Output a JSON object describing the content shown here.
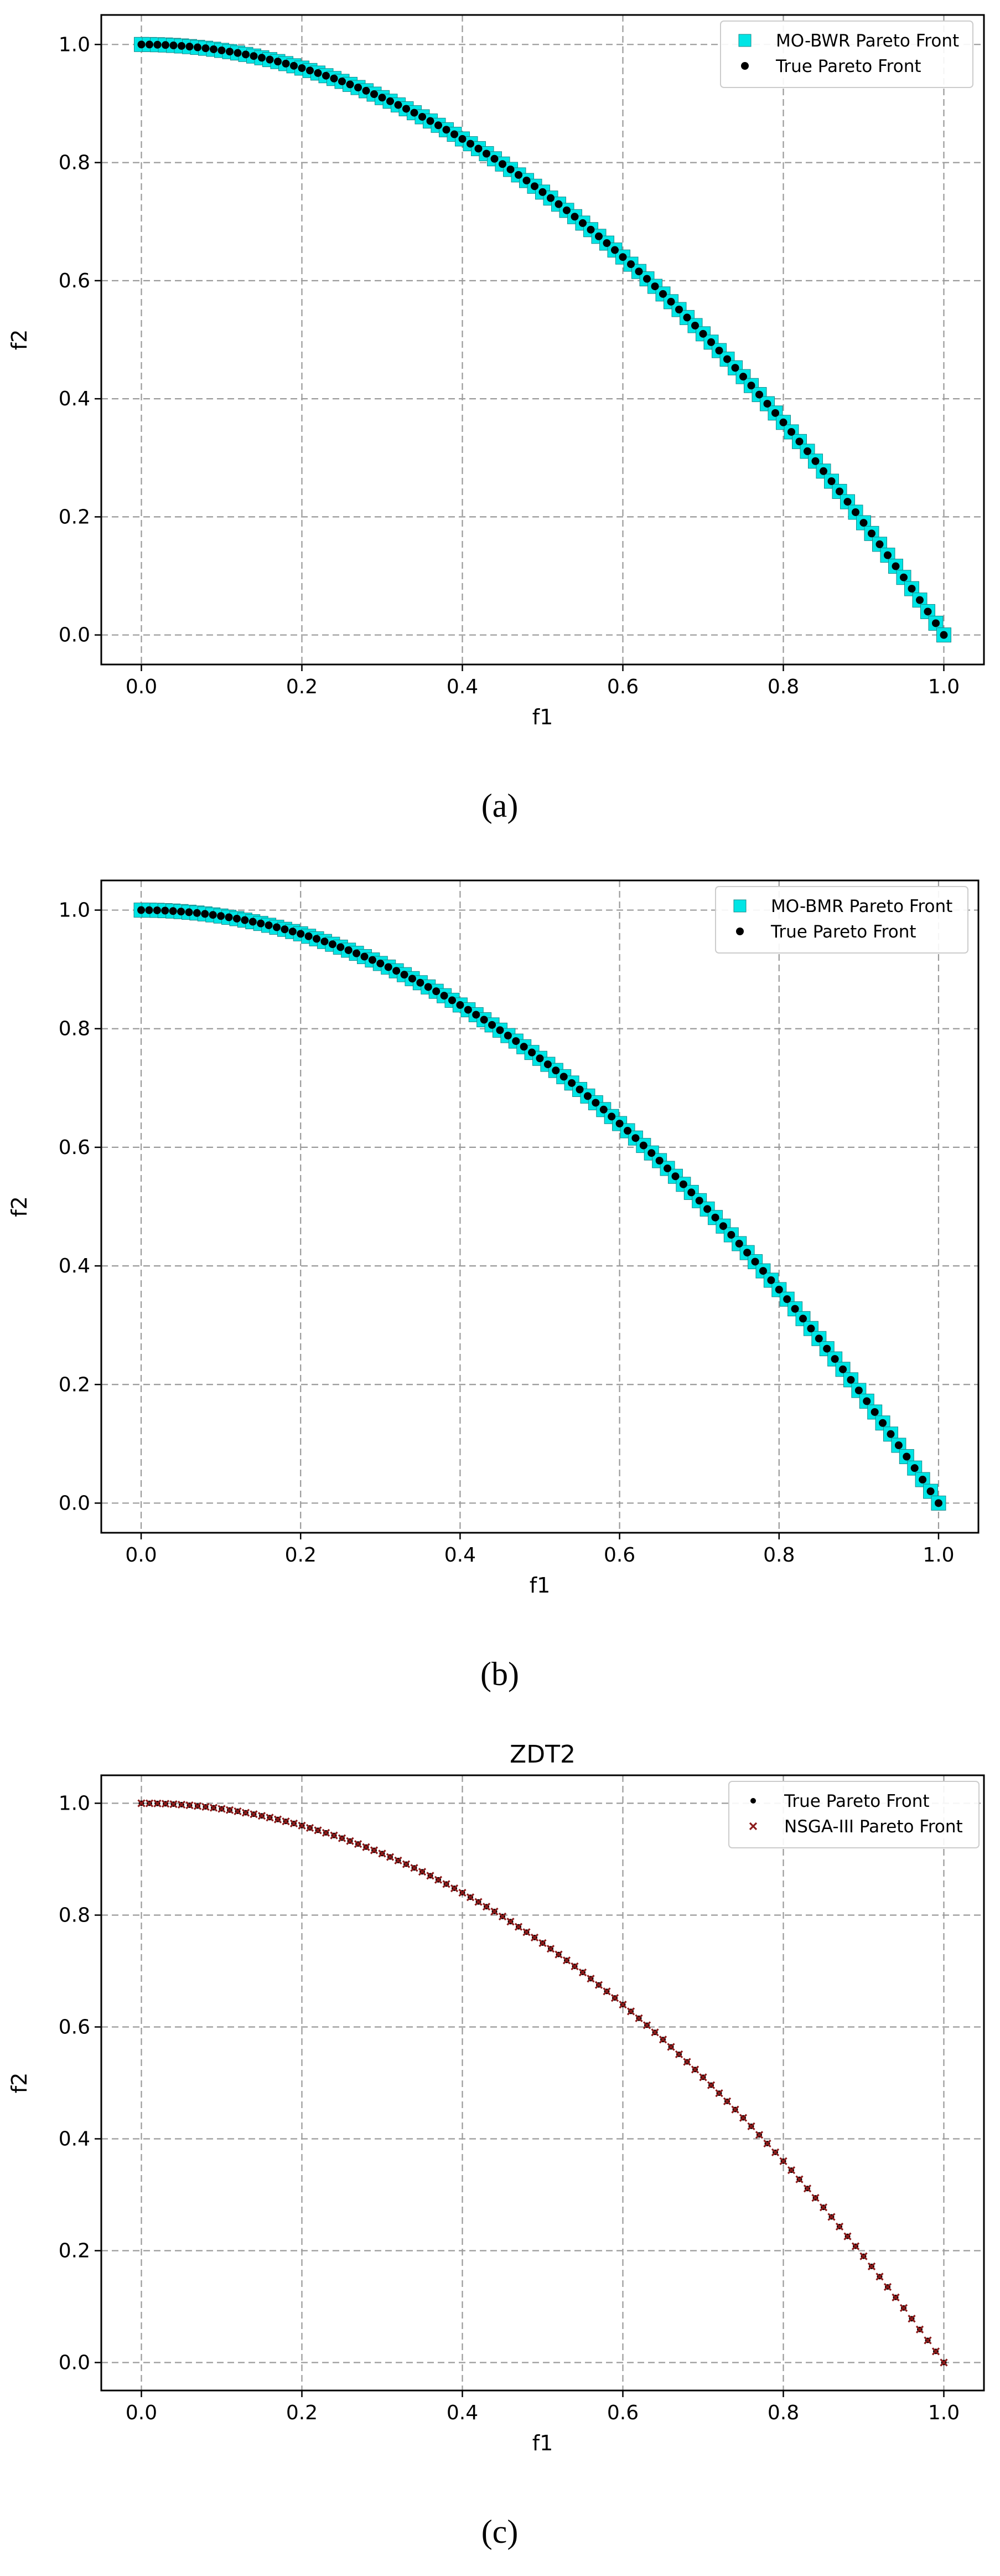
{
  "chart_data": [
    {
      "type": "scatter",
      "title": "",
      "xlabel": "f1",
      "ylabel": "f2",
      "xlim": [
        -0.05,
        1.05
      ],
      "ylim": [
        -0.05,
        1.05
      ],
      "xticks": [
        "0.0",
        "0.2",
        "0.4",
        "0.6",
        "0.8",
        "1.0"
      ],
      "yticks": [
        "0.0",
        "0.2",
        "0.4",
        "0.6",
        "0.8",
        "1.0"
      ],
      "grid": true,
      "legend_position": "top-right",
      "caption": "(a)",
      "series": [
        {
          "name": "MO-BWR Pareto Front",
          "marker": "square",
          "color": "#00e5e5",
          "x": [
            0.0,
            0.01,
            0.02,
            0.03,
            0.04,
            0.05,
            0.06,
            0.07,
            0.08,
            0.09,
            0.1,
            0.11,
            0.12,
            0.13,
            0.14,
            0.15,
            0.16,
            0.17,
            0.18,
            0.19,
            0.2,
            0.21,
            0.22,
            0.23,
            0.24,
            0.25,
            0.26,
            0.27,
            0.28,
            0.29,
            0.3,
            0.31,
            0.32,
            0.33,
            0.34,
            0.35,
            0.36,
            0.37,
            0.38,
            0.39,
            0.4,
            0.41,
            0.42,
            0.43,
            0.44,
            0.45,
            0.46,
            0.47,
            0.48,
            0.49,
            0.5,
            0.51,
            0.52,
            0.53,
            0.54,
            0.55,
            0.56,
            0.57,
            0.58,
            0.59,
            0.6,
            0.61,
            0.62,
            0.63,
            0.64,
            0.65,
            0.66,
            0.67,
            0.68,
            0.69,
            0.7,
            0.71,
            0.72,
            0.73,
            0.74,
            0.75,
            0.76,
            0.77,
            0.78,
            0.79,
            0.8,
            0.81,
            0.82,
            0.83,
            0.84,
            0.85,
            0.86,
            0.87,
            0.88,
            0.89,
            0.9,
            0.91,
            0.92,
            0.93,
            0.94,
            0.95,
            0.96,
            0.97,
            0.98,
            0.99,
            1.0
          ]
        },
        {
          "name": "True Pareto Front",
          "marker": "circle",
          "color": "#000000",
          "x": [
            0.0,
            0.01,
            0.02,
            0.03,
            0.04,
            0.05,
            0.06,
            0.07,
            0.08,
            0.09,
            0.1,
            0.11,
            0.12,
            0.13,
            0.14,
            0.15,
            0.16,
            0.17,
            0.18,
            0.19,
            0.2,
            0.21,
            0.22,
            0.23,
            0.24,
            0.25,
            0.26,
            0.27,
            0.28,
            0.29,
            0.3,
            0.31,
            0.32,
            0.33,
            0.34,
            0.35,
            0.36,
            0.37,
            0.38,
            0.39,
            0.4,
            0.41,
            0.42,
            0.43,
            0.44,
            0.45,
            0.46,
            0.47,
            0.48,
            0.49,
            0.5,
            0.51,
            0.52,
            0.53,
            0.54,
            0.55,
            0.56,
            0.57,
            0.58,
            0.59,
            0.6,
            0.61,
            0.62,
            0.63,
            0.64,
            0.65,
            0.66,
            0.67,
            0.68,
            0.69,
            0.7,
            0.71,
            0.72,
            0.73,
            0.74,
            0.75,
            0.76,
            0.77,
            0.78,
            0.79,
            0.8,
            0.81,
            0.82,
            0.83,
            0.84,
            0.85,
            0.86,
            0.87,
            0.88,
            0.89,
            0.9,
            0.91,
            0.92,
            0.93,
            0.94,
            0.95,
            0.96,
            0.97,
            0.98,
            0.99,
            1.0
          ]
        }
      ]
    },
    {
      "type": "scatter",
      "title": "",
      "xlabel": "f1",
      "ylabel": "f2",
      "xlim": [
        -0.05,
        1.05
      ],
      "ylim": [
        -0.05,
        1.05
      ],
      "xticks": [
        "0.0",
        "0.2",
        "0.4",
        "0.6",
        "0.8",
        "1.0"
      ],
      "yticks": [
        "0.0",
        "0.2",
        "0.4",
        "0.6",
        "0.8",
        "1.0"
      ],
      "grid": true,
      "legend_position": "top-right",
      "caption": "(b)",
      "series": [
        {
          "name": "MO-BMR Pareto Front",
          "marker": "square",
          "color": "#00e5e5",
          "x": [
            0.0,
            0.01,
            0.02,
            0.03,
            0.04,
            0.05,
            0.06,
            0.07,
            0.08,
            0.09,
            0.1,
            0.11,
            0.12,
            0.13,
            0.14,
            0.15,
            0.16,
            0.17,
            0.18,
            0.19,
            0.2,
            0.21,
            0.22,
            0.23,
            0.24,
            0.25,
            0.26,
            0.27,
            0.28,
            0.29,
            0.3,
            0.31,
            0.32,
            0.33,
            0.34,
            0.35,
            0.36,
            0.37,
            0.38,
            0.39,
            0.4,
            0.41,
            0.42,
            0.43,
            0.44,
            0.45,
            0.46,
            0.47,
            0.48,
            0.49,
            0.5,
            0.51,
            0.52,
            0.53,
            0.54,
            0.55,
            0.56,
            0.57,
            0.58,
            0.59,
            0.6,
            0.61,
            0.62,
            0.63,
            0.64,
            0.65,
            0.66,
            0.67,
            0.68,
            0.69,
            0.7,
            0.71,
            0.72,
            0.73,
            0.74,
            0.75,
            0.76,
            0.77,
            0.78,
            0.79,
            0.8,
            0.81,
            0.82,
            0.83,
            0.84,
            0.85,
            0.86,
            0.87,
            0.88,
            0.89,
            0.9,
            0.91,
            0.92,
            0.93,
            0.94,
            0.95,
            0.96,
            0.97,
            0.98,
            0.99,
            1.0
          ]
        },
        {
          "name": "True Pareto Front",
          "marker": "circle",
          "color": "#000000",
          "x": [
            0.0,
            0.01,
            0.02,
            0.03,
            0.04,
            0.05,
            0.06,
            0.07,
            0.08,
            0.09,
            0.1,
            0.11,
            0.12,
            0.13,
            0.14,
            0.15,
            0.16,
            0.17,
            0.18,
            0.19,
            0.2,
            0.21,
            0.22,
            0.23,
            0.24,
            0.25,
            0.26,
            0.27,
            0.28,
            0.29,
            0.3,
            0.31,
            0.32,
            0.33,
            0.34,
            0.35,
            0.36,
            0.37,
            0.38,
            0.39,
            0.4,
            0.41,
            0.42,
            0.43,
            0.44,
            0.45,
            0.46,
            0.47,
            0.48,
            0.49,
            0.5,
            0.51,
            0.52,
            0.53,
            0.54,
            0.55,
            0.56,
            0.57,
            0.58,
            0.59,
            0.6,
            0.61,
            0.62,
            0.63,
            0.64,
            0.65,
            0.66,
            0.67,
            0.68,
            0.69,
            0.7,
            0.71,
            0.72,
            0.73,
            0.74,
            0.75,
            0.76,
            0.77,
            0.78,
            0.79,
            0.8,
            0.81,
            0.82,
            0.83,
            0.84,
            0.85,
            0.86,
            0.87,
            0.88,
            0.89,
            0.9,
            0.91,
            0.92,
            0.93,
            0.94,
            0.95,
            0.96,
            0.97,
            0.98,
            0.99,
            1.0
          ]
        }
      ]
    },
    {
      "type": "scatter",
      "title": "ZDT2",
      "xlabel": "f1",
      "ylabel": "f2",
      "xlim": [
        -0.05,
        1.05
      ],
      "ylim": [
        -0.05,
        1.05
      ],
      "xticks": [
        "0.0",
        "0.2",
        "0.4",
        "0.6",
        "0.8",
        "1.0"
      ],
      "yticks": [
        "0.0",
        "0.2",
        "0.4",
        "0.6",
        "0.8",
        "1.0"
      ],
      "grid": true,
      "legend_position": "top-right",
      "caption": "(c)",
      "series": [
        {
          "name": "True Pareto Front",
          "marker": "dot",
          "color": "#000000",
          "x": [
            0.0,
            0.01,
            0.02,
            0.03,
            0.04,
            0.05,
            0.06,
            0.07,
            0.08,
            0.09,
            0.1,
            0.11,
            0.12,
            0.13,
            0.14,
            0.15,
            0.16,
            0.17,
            0.18,
            0.19,
            0.2,
            0.21,
            0.22,
            0.23,
            0.24,
            0.25,
            0.26,
            0.27,
            0.28,
            0.29,
            0.3,
            0.31,
            0.32,
            0.33,
            0.34,
            0.35,
            0.36,
            0.37,
            0.38,
            0.39,
            0.4,
            0.41,
            0.42,
            0.43,
            0.44,
            0.45,
            0.46,
            0.47,
            0.48,
            0.49,
            0.5,
            0.51,
            0.52,
            0.53,
            0.54,
            0.55,
            0.56,
            0.57,
            0.58,
            0.59,
            0.6,
            0.61,
            0.62,
            0.63,
            0.64,
            0.65,
            0.66,
            0.67,
            0.68,
            0.69,
            0.7,
            0.71,
            0.72,
            0.73,
            0.74,
            0.75,
            0.76,
            0.77,
            0.78,
            0.79,
            0.8,
            0.81,
            0.82,
            0.83,
            0.84,
            0.85,
            0.86,
            0.87,
            0.88,
            0.89,
            0.9,
            0.91,
            0.92,
            0.93,
            0.94,
            0.95,
            0.96,
            0.97,
            0.98,
            0.99,
            1.0
          ]
        },
        {
          "name": "NSGA-III Pareto Front",
          "marker": "x",
          "color": "#8b1a1a",
          "x": [
            0.0,
            0.01,
            0.02,
            0.03,
            0.04,
            0.05,
            0.06,
            0.07,
            0.08,
            0.09,
            0.1,
            0.11,
            0.12,
            0.13,
            0.14,
            0.15,
            0.16,
            0.17,
            0.18,
            0.19,
            0.2,
            0.21,
            0.22,
            0.23,
            0.24,
            0.25,
            0.26,
            0.27,
            0.28,
            0.29,
            0.3,
            0.31,
            0.32,
            0.33,
            0.34,
            0.35,
            0.36,
            0.37,
            0.38,
            0.39,
            0.4,
            0.41,
            0.42,
            0.43,
            0.44,
            0.45,
            0.46,
            0.47,
            0.48,
            0.49,
            0.5,
            0.51,
            0.52,
            0.53,
            0.54,
            0.55,
            0.56,
            0.57,
            0.58,
            0.59,
            0.6,
            0.61,
            0.62,
            0.63,
            0.64,
            0.65,
            0.66,
            0.67,
            0.68,
            0.69,
            0.7,
            0.71,
            0.72,
            0.73,
            0.74,
            0.75,
            0.76,
            0.77,
            0.78,
            0.79,
            0.8,
            0.81,
            0.82,
            0.83,
            0.84,
            0.85,
            0.86,
            0.87,
            0.88,
            0.89,
            0.9,
            0.91,
            0.92,
            0.93,
            0.94,
            0.95,
            0.96,
            0.97,
            0.98,
            0.99,
            1.0
          ]
        }
      ]
    }
  ]
}
